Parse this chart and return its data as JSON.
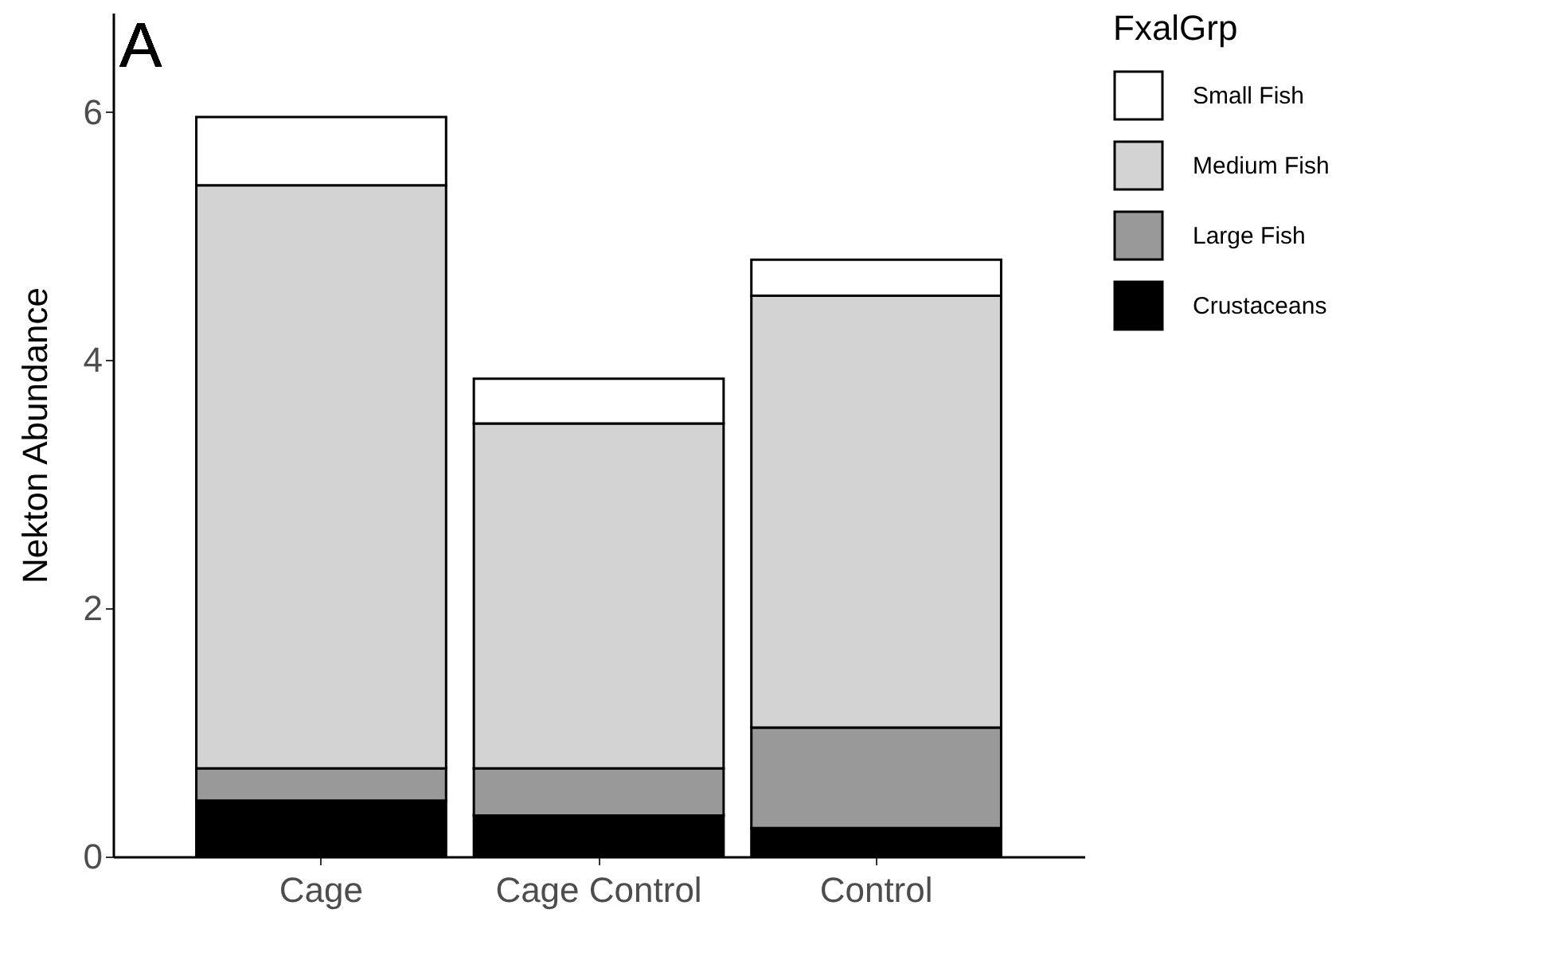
{
  "chart_data": {
    "type": "bar",
    "stacked": true,
    "ylabel": "Nekton Abundance",
    "legend_title": "FxalGrp",
    "legend": "right",
    "grid": false,
    "annotations": [
      "A"
    ],
    "categories": [
      "Cage",
      "Cage Control",
      "Control"
    ],
    "ylim": [
      0,
      6.8
    ],
    "yticks": [
      0,
      2,
      4,
      6
    ],
    "series": [
      {
        "name": "Crustaceans",
        "color": "#000000",
        "values": [
          0.45,
          0.33,
          0.23
        ]
      },
      {
        "name": "Large Fish",
        "color": "#999999",
        "values": [
          0.26,
          0.38,
          0.81
        ]
      },
      {
        "name": "Medium Fish",
        "color": "#d3d3d3",
        "values": [
          4.7,
          2.78,
          3.48
        ]
      },
      {
        "name": "Small Fish",
        "color": "#ffffff",
        "values": [
          0.55,
          0.36,
          0.29
        ]
      }
    ]
  }
}
